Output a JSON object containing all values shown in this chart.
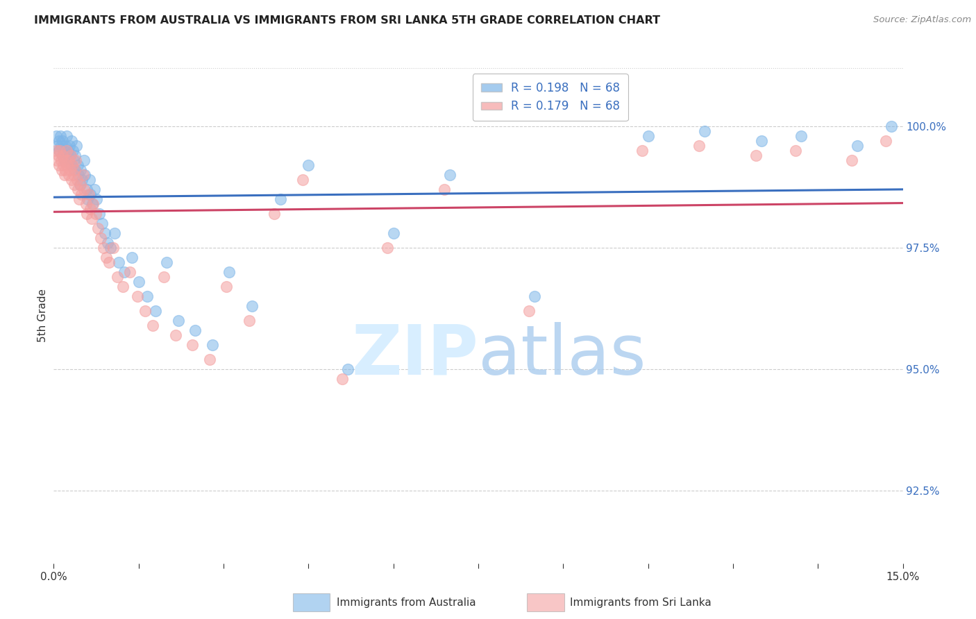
{
  "title": "IMMIGRANTS FROM AUSTRALIA VS IMMIGRANTS FROM SRI LANKA 5TH GRADE CORRELATION CHART",
  "source": "Source: ZipAtlas.com",
  "ylabel": "5th Grade",
  "yticks": [
    100.0,
    97.5,
    95.0,
    92.5
  ],
  "ytick_labels": [
    "100.0%",
    "97.5%",
    "95.0%",
    "92.5%"
  ],
  "xmin": 0.0,
  "xmax": 15.0,
  "ymin": 91.0,
  "ymax": 101.2,
  "R_australia": 0.198,
  "N_australia": 68,
  "R_srilanka": 0.179,
  "N_srilanka": 68,
  "color_australia": "#7EB6E8",
  "color_srilanka": "#F4A0A0",
  "trendline_color_australia": "#3A6FBF",
  "trendline_color_srilanka": "#CC4466",
  "watermark_color": "#D8EEFF",
  "legend_label_australia": "Immigrants from Australia",
  "legend_label_srilanka": "Immigrants from Sri Lanka",
  "aus_x": [
    0.05,
    0.07,
    0.09,
    0.1,
    0.12,
    0.13,
    0.15,
    0.16,
    0.18,
    0.19,
    0.2,
    0.22,
    0.23,
    0.25,
    0.26,
    0.28,
    0.29,
    0.31,
    0.32,
    0.34,
    0.35,
    0.37,
    0.38,
    0.4,
    0.42,
    0.44,
    0.46,
    0.48,
    0.5,
    0.53,
    0.55,
    0.58,
    0.6,
    0.63,
    0.65,
    0.68,
    0.72,
    0.76,
    0.8,
    0.85,
    0.9,
    0.95,
    1.0,
    1.08,
    1.15,
    1.25,
    1.38,
    1.5,
    1.65,
    1.8,
    2.0,
    2.2,
    2.5,
    2.8,
    3.1,
    3.5,
    4.0,
    4.5,
    5.2,
    6.0,
    7.0,
    8.5,
    10.5,
    11.5,
    12.5,
    13.2,
    14.2,
    14.8
  ],
  "aus_y": [
    99.8,
    99.6,
    99.7,
    99.5,
    99.8,
    99.6,
    99.4,
    99.7,
    99.5,
    99.3,
    99.6,
    99.4,
    99.8,
    99.5,
    99.3,
    99.6,
    99.4,
    99.7,
    99.2,
    99.5,
    99.3,
    99.1,
    99.4,
    99.6,
    99.2,
    99.0,
    98.8,
    99.1,
    98.9,
    99.3,
    99.0,
    98.7,
    98.5,
    98.9,
    98.6,
    98.4,
    98.7,
    98.5,
    98.2,
    98.0,
    97.8,
    97.6,
    97.5,
    97.8,
    97.2,
    97.0,
    97.3,
    96.8,
    96.5,
    96.2,
    97.2,
    96.0,
    95.8,
    95.5,
    97.0,
    96.3,
    98.5,
    99.2,
    95.0,
    97.8,
    99.0,
    96.5,
    99.8,
    99.9,
    99.7,
    99.8,
    99.6,
    100.0
  ],
  "slk_x": [
    0.04,
    0.06,
    0.08,
    0.1,
    0.11,
    0.13,
    0.14,
    0.16,
    0.17,
    0.19,
    0.2,
    0.21,
    0.23,
    0.24,
    0.26,
    0.27,
    0.29,
    0.3,
    0.32,
    0.33,
    0.35,
    0.36,
    0.38,
    0.39,
    0.41,
    0.43,
    0.45,
    0.47,
    0.49,
    0.52,
    0.54,
    0.57,
    0.59,
    0.62,
    0.64,
    0.67,
    0.7,
    0.74,
    0.78,
    0.83,
    0.88,
    0.93,
    0.98,
    1.05,
    1.12,
    1.22,
    1.35,
    1.48,
    1.62,
    1.75,
    1.95,
    2.15,
    2.45,
    2.75,
    3.05,
    3.45,
    3.9,
    4.4,
    5.1,
    5.9,
    6.9,
    8.4,
    10.4,
    11.4,
    12.4,
    13.1,
    14.1,
    14.7
  ],
  "slk_y": [
    99.5,
    99.3,
    99.4,
    99.2,
    99.5,
    99.3,
    99.1,
    99.4,
    99.2,
    99.0,
    99.3,
    99.1,
    99.5,
    99.2,
    99.0,
    99.3,
    99.1,
    99.4,
    98.9,
    99.2,
    99.0,
    98.8,
    99.1,
    99.3,
    98.9,
    98.7,
    98.5,
    98.8,
    98.6,
    99.0,
    98.7,
    98.4,
    98.2,
    98.6,
    98.3,
    98.1,
    98.4,
    98.2,
    97.9,
    97.7,
    97.5,
    97.3,
    97.2,
    97.5,
    96.9,
    96.7,
    97.0,
    96.5,
    96.2,
    95.9,
    96.9,
    95.7,
    95.5,
    95.2,
    96.7,
    96.0,
    98.2,
    98.9,
    94.8,
    97.5,
    98.7,
    96.2,
    99.5,
    99.6,
    99.4,
    99.5,
    99.3,
    99.7
  ]
}
